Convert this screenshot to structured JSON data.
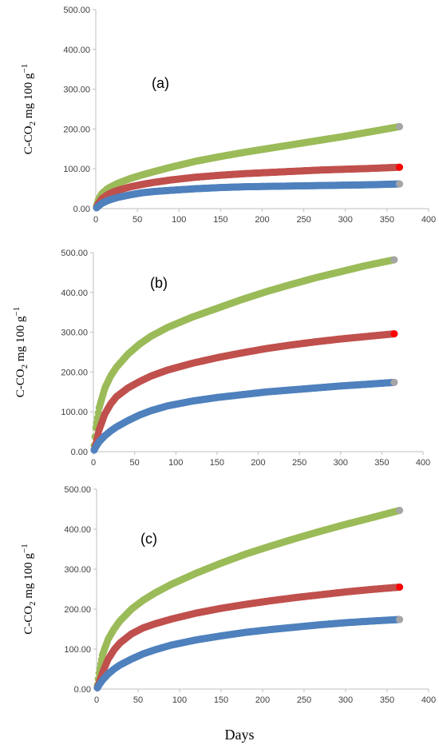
{
  "figure": {
    "x_label": "Days",
    "y_label": {
      "prefix": "C-CO",
      "sub": "2",
      "middle": " mg 100 g",
      "sup": "−1"
    }
  },
  "colors": {
    "green": "#9bbb59",
    "red": "#c0504d",
    "blue": "#4f81bd",
    "endpoint": "#a6a6a6",
    "axis": "#bfbfbf"
  },
  "chart_data": [
    {
      "type": "scatter",
      "panel_label": "(a)",
      "xlim": [
        0,
        400
      ],
      "ylim": [
        0,
        500
      ],
      "x_ticks": [
        "0",
        "50",
        "100",
        "150",
        "200",
        "250",
        "300",
        "350",
        "400"
      ],
      "y_ticks": [
        "0.00",
        "100.00",
        "200.00",
        "300.00",
        "400.00",
        "500.00"
      ],
      "grid": false,
      "series": [
        {
          "color": "green",
          "x": [
            1,
            3,
            7,
            14,
            21,
            28,
            42,
            56,
            70,
            90,
            120,
            150,
            180,
            210,
            240,
            270,
            300,
            330,
            365
          ],
          "y": [
            8,
            22,
            37,
            50,
            58,
            65,
            76,
            85,
            93,
            104,
            119,
            131,
            142,
            152,
            162,
            172,
            182,
            193,
            206
          ]
        },
        {
          "color": "red",
          "x": [
            1,
            3,
            7,
            14,
            21,
            28,
            42,
            56,
            70,
            90,
            120,
            150,
            180,
            210,
            240,
            270,
            300,
            330,
            365
          ],
          "y": [
            4,
            12,
            24,
            35,
            42,
            47,
            55,
            61,
            66,
            72,
            79,
            84,
            88,
            91,
            94,
            97,
            99,
            101,
            104
          ]
        },
        {
          "color": "blue",
          "x": [
            1,
            3,
            7,
            14,
            21,
            28,
            42,
            56,
            70,
            90,
            120,
            150,
            180,
            210,
            240,
            270,
            300,
            330,
            365
          ],
          "y": [
            2,
            6,
            13,
            20,
            25,
            29,
            35,
            40,
            43,
            46,
            50,
            53,
            55,
            56,
            57,
            58,
            59,
            60,
            62
          ]
        }
      ]
    },
    {
      "type": "scatter",
      "panel_label": "(b)",
      "xlim": [
        0,
        400
      ],
      "ylim": [
        0,
        500
      ],
      "x_ticks": [
        "0",
        "50",
        "100",
        "150",
        "200",
        "250",
        "300",
        "350",
        "400"
      ],
      "y_ticks": [
        "0.00",
        "100.00",
        "200.00",
        "300.00",
        "400.00",
        "500.00"
      ],
      "grid": false,
      "series": [
        {
          "color": "green",
          "x": [
            1,
            3,
            7,
            14,
            21,
            28,
            42,
            56,
            70,
            90,
            120,
            150,
            180,
            210,
            240,
            270,
            300,
            330,
            365
          ],
          "y": [
            15,
            60,
            110,
            160,
            190,
            212,
            245,
            270,
            290,
            312,
            338,
            360,
            382,
            402,
            420,
            437,
            452,
            467,
            482
          ]
        },
        {
          "color": "red",
          "x": [
            1,
            3,
            7,
            14,
            21,
            28,
            42,
            56,
            70,
            90,
            120,
            150,
            180,
            210,
            240,
            270,
            300,
            330,
            365
          ],
          "y": [
            5,
            20,
            55,
            95,
            120,
            138,
            160,
            176,
            190,
            205,
            222,
            236,
            248,
            259,
            268,
            276,
            283,
            289,
            296
          ]
        },
        {
          "color": "blue",
          "x": [
            1,
            3,
            7,
            14,
            21,
            28,
            42,
            56,
            70,
            90,
            120,
            150,
            180,
            210,
            240,
            270,
            300,
            330,
            365
          ],
          "y": [
            4,
            12,
            25,
            40,
            52,
            62,
            78,
            92,
            103,
            115,
            127,
            136,
            143,
            150,
            155,
            160,
            165,
            169,
            174
          ]
        }
      ]
    },
    {
      "type": "scatter",
      "panel_label": "(c)",
      "xlim": [
        0,
        400
      ],
      "ylim": [
        0,
        500
      ],
      "x_ticks": [
        "0",
        "50",
        "100",
        "150",
        "200",
        "250",
        "300",
        "350",
        "400"
      ],
      "y_ticks": [
        "0.00",
        "100.00",
        "200.00",
        "300.00",
        "400.00",
        "500.00"
      ],
      "grid": false,
      "series": [
        {
          "color": "green",
          "x": [
            1,
            3,
            7,
            14,
            21,
            28,
            42,
            56,
            70,
            90,
            120,
            150,
            180,
            210,
            240,
            270,
            300,
            330,
            365
          ],
          "y": [
            10,
            40,
            85,
            125,
            150,
            170,
            200,
            222,
            240,
            262,
            290,
            315,
            338,
            358,
            377,
            395,
            412,
            428,
            447
          ]
        },
        {
          "color": "red",
          "x": [
            1,
            3,
            7,
            14,
            21,
            28,
            42,
            56,
            70,
            90,
            120,
            150,
            180,
            210,
            240,
            270,
            300,
            330,
            365
          ],
          "y": [
            4,
            15,
            40,
            75,
            98,
            115,
            138,
            153,
            163,
            175,
            190,
            202,
            212,
            221,
            229,
            236,
            243,
            249,
            255
          ]
        },
        {
          "color": "blue",
          "x": [
            1,
            3,
            7,
            14,
            21,
            28,
            42,
            56,
            70,
            90,
            120,
            150,
            180,
            210,
            240,
            270,
            300,
            330,
            365
          ],
          "y": [
            3,
            10,
            22,
            38,
            50,
            60,
            75,
            88,
            98,
            110,
            123,
            133,
            142,
            149,
            155,
            161,
            166,
            170,
            174
          ]
        }
      ]
    }
  ]
}
